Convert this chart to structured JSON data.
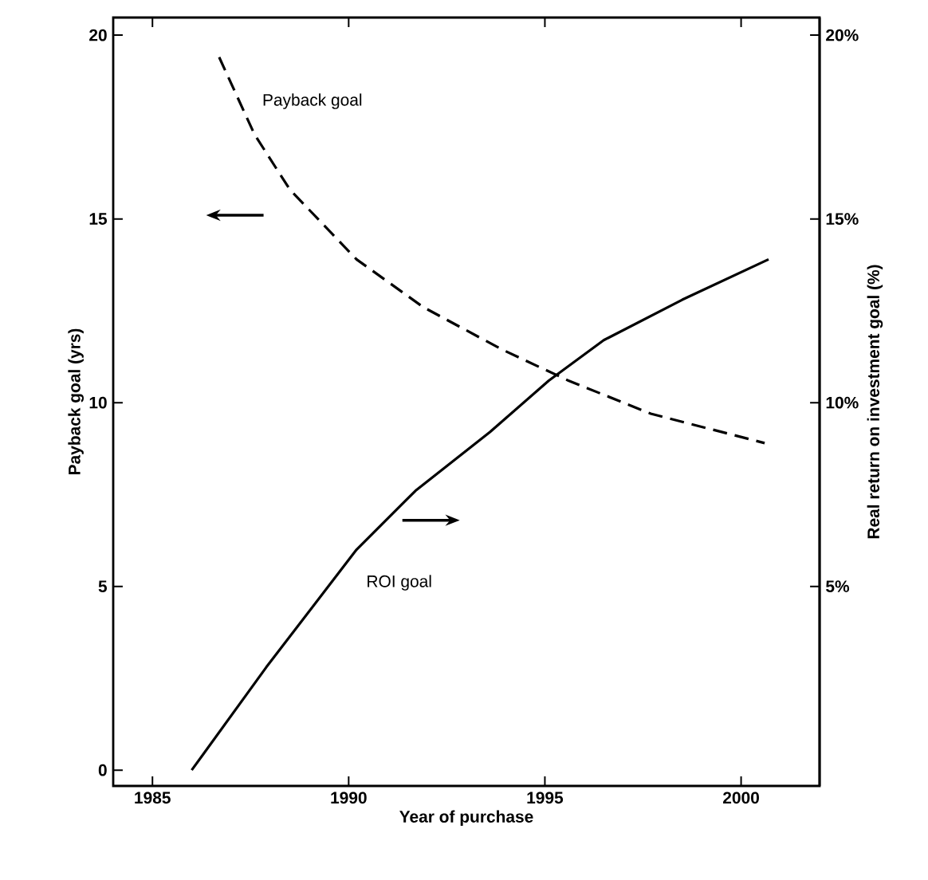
{
  "chart_data": {
    "type": "line",
    "xlabel": "Year of purchase",
    "ylabel": "Payback goal (yrs)",
    "y2label": "Real return on investment goal (%)",
    "xlim": [
      1984,
      2002
    ],
    "xticks": [
      1985,
      1990,
      1995,
      2000
    ],
    "ylim": [
      -0.43,
      20.48
    ],
    "yticks": [
      0,
      5,
      10,
      15,
      20
    ],
    "y2lim": [
      -0.43,
      20.48
    ],
    "y2ticks": [
      {
        "value": 5,
        "label": "5%"
      },
      {
        "value": 10,
        "label": "10%"
      },
      {
        "value": 15,
        "label": "15%"
      },
      {
        "value": 20,
        "label": "20%"
      }
    ],
    "marker": "none",
    "grid": false,
    "series": [
      {
        "name": "Payback goal",
        "color": "#000000",
        "line_style": "dashed",
        "x": [
          1986.7,
          1987.6,
          1988.5,
          1990.2,
          1991.9,
          1993.9,
          1995.6,
          1997.7,
          2000.6
        ],
        "values": [
          19.4,
          17.3,
          15.8,
          13.9,
          12.6,
          11.45,
          10.6,
          9.7,
          8.9
        ]
      },
      {
        "name": "ROI goal",
        "color": "#000000",
        "line_style": "solid",
        "axis": "y2",
        "x": [
          1986.0,
          1987.9,
          1990.2,
          1991.7,
          1993.6,
          1995.1,
          1996.5,
          1998.5,
          2000.7
        ],
        "values": [
          0,
          2.8,
          6.0,
          7.6,
          9.2,
          10.6,
          11.7,
          12.8,
          13.9
        ]
      }
    ]
  }
}
